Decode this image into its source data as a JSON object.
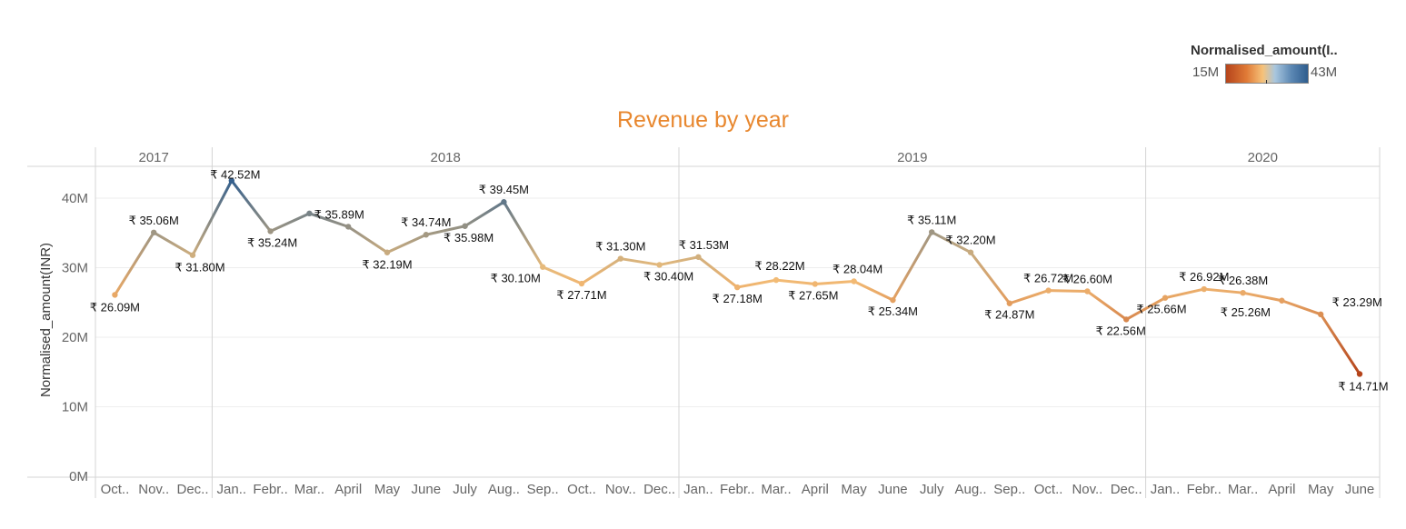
{
  "legend": {
    "title": "Normalised_amount(I..",
    "min_label": "15M",
    "max_label": "43M"
  },
  "chart_data": {
    "type": "line",
    "title": "Revenue by year",
    "ylabel": "Normalised_amount(INR)",
    "xlabel": "",
    "ylim": [
      0,
      45
    ],
    "yticks": [
      {
        "value": 0,
        "label": "0M"
      },
      {
        "value": 10,
        "label": "10M"
      },
      {
        "value": 20,
        "label": "20M"
      },
      {
        "value": 30,
        "label": "30M"
      },
      {
        "value": 40,
        "label": "40M"
      }
    ],
    "color_scale": {
      "min": 15,
      "max": 43,
      "low_color": "#b5441b",
      "mid_color": "#f6c27a",
      "high_color": "#2e5d8e"
    },
    "grid": true,
    "panels": [
      {
        "year": "2017",
        "months": [
          "Oct..",
          "Nov..",
          "Dec.."
        ],
        "values": [
          26.09,
          35.06,
          31.8
        ],
        "labels": [
          "₹ 26.09M",
          "₹ 35.06M",
          "₹ 31.80M"
        ]
      },
      {
        "year": "2018",
        "months": [
          "Jan..",
          "Febr..",
          "Mar..",
          "April",
          "May",
          "June",
          "July",
          "Aug..",
          "Sep..",
          "Oct..",
          "Nov..",
          "Dec.."
        ],
        "values": [
          42.52,
          35.24,
          37.8,
          35.89,
          32.19,
          34.74,
          35.98,
          39.45,
          30.1,
          27.71,
          31.3,
          30.4
        ],
        "labels": [
          "₹ 42.52M",
          "₹ 35.24M",
          "",
          "₹ 35.89M",
          "₹ 32.19M",
          "₹ 34.74M",
          "₹ 35.98M",
          "₹ 39.45M",
          "₹ 30.10M",
          "₹ 27.71M",
          "₹ 31.30M",
          "₹ 30.40M"
        ]
      },
      {
        "year": "2019",
        "months": [
          "Jan..",
          "Febr..",
          "Mar..",
          "April",
          "May",
          "June",
          "July",
          "Aug..",
          "Sep..",
          "Oct..",
          "Nov..",
          "Dec.."
        ],
        "values": [
          31.53,
          27.18,
          28.22,
          27.65,
          28.04,
          25.34,
          35.11,
          32.2,
          24.87,
          26.72,
          26.6,
          22.56
        ],
        "labels": [
          "₹ 31.53M",
          "₹ 27.18M",
          "₹ 28.22M",
          "₹ 27.65M",
          "₹ 28.04M",
          "₹ 25.34M",
          "₹ 35.11M",
          "₹ 32.20M",
          "₹ 24.87M",
          "₹ 26.72M",
          "₹ 26.60M",
          "₹ 22.56M"
        ]
      },
      {
        "year": "2020",
        "months": [
          "Jan..",
          "Febr..",
          "Mar..",
          "April",
          "May",
          "June"
        ],
        "values": [
          25.66,
          26.92,
          26.38,
          25.26,
          23.29,
          14.71
        ],
        "labels": [
          "₹ 25.66M",
          "₹ 26.92M",
          "₹ 26.38M",
          "₹ 25.26M",
          "₹ 23.29M",
          "₹ 14.71M"
        ]
      }
    ]
  }
}
